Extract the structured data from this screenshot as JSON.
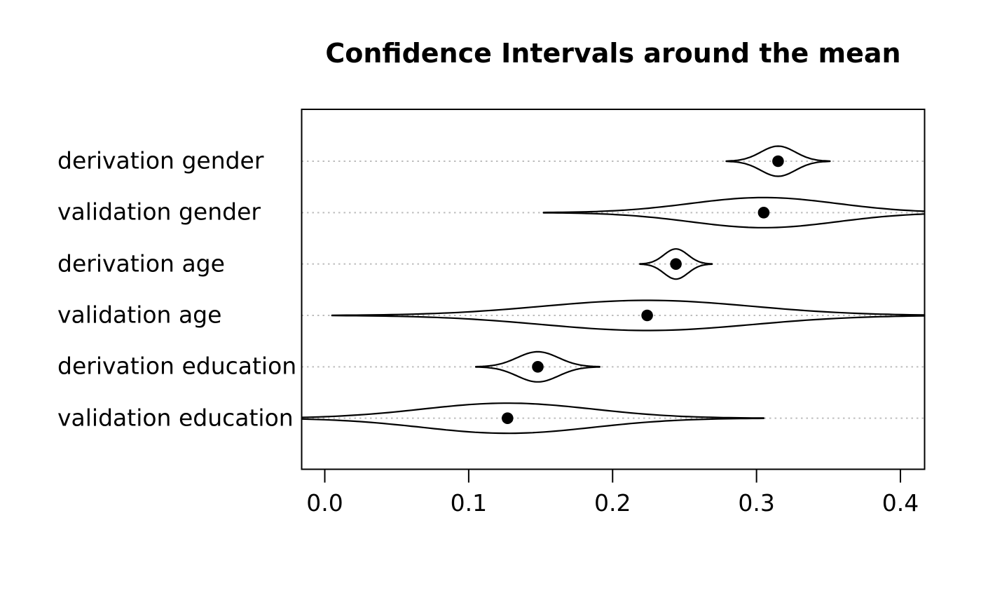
{
  "title": "Confidence Intervals around the mean",
  "colors": {
    "background": "#ffffff",
    "foreground": "#000000",
    "grid": "#bdbdbd"
  },
  "chart_data": {
    "type": "violin",
    "subtype": "confidence-interval-cat-eye",
    "orientation": "horizontal",
    "title": "Confidence Intervals around the mean",
    "xlabel": "",
    "ylabel": "",
    "xlim": [
      -0.016,
      0.417
    ],
    "x_ticks": [
      "0.0",
      "0.1",
      "0.2",
      "0.3",
      "0.4"
    ],
    "x_tick_values": [
      0.0,
      0.1,
      0.2,
      0.3,
      0.4
    ],
    "grid": "dotted gray horizontal guide per row",
    "legend": "none",
    "categories": [
      "derivation gender",
      "validation gender",
      "derivation age",
      "validation age",
      "derivation education",
      "validation education"
    ],
    "series": [
      {
        "label": "derivation gender",
        "mean": 0.315,
        "ci_half_width": 0.036,
        "ci_lower": 0.279,
        "ci_upper": 0.351
      },
      {
        "label": "validation gender",
        "mean": 0.305,
        "ci_half_width": 0.153,
        "ci_lower": 0.152,
        "ci_upper": 0.458
      },
      {
        "label": "derivation age",
        "mean": 0.244,
        "ci_half_width": 0.025,
        "ci_lower": 0.219,
        "ci_upper": 0.269
      },
      {
        "label": "validation age",
        "mean": 0.224,
        "ci_half_width": 0.219,
        "ci_lower": 0.005,
        "ci_upper": 0.443
      },
      {
        "label": "derivation education",
        "mean": 0.148,
        "ci_half_width": 0.043,
        "ci_lower": 0.105,
        "ci_upper": 0.191
      },
      {
        "label": "validation education",
        "mean": 0.127,
        "ci_half_width": 0.178,
        "ci_lower": -0.051,
        "ci_upper": 0.305
      }
    ],
    "notes": "violins clipped at plot box edges; black dot marks the mean"
  }
}
